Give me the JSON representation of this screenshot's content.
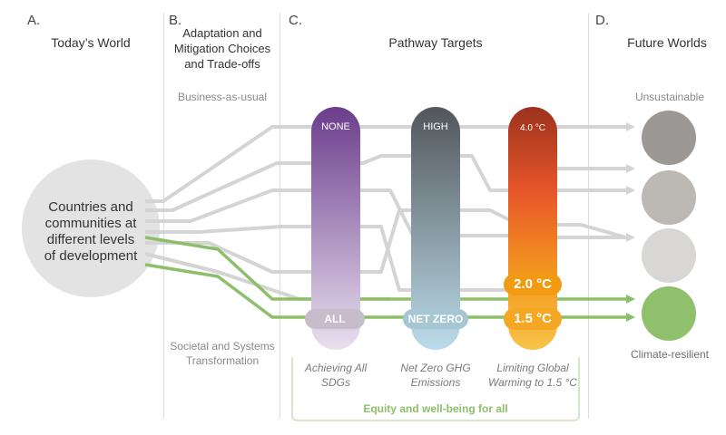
{
  "sections": {
    "a": {
      "letter": "A.",
      "title": "Today’s World"
    },
    "b": {
      "letter": "B.",
      "title": "Adaptation and Mitigation Choices and Trade-offs"
    },
    "c": {
      "letter": "C.",
      "title": "Pathway Targets"
    },
    "d": {
      "letter": "D.",
      "title": "Future Worlds"
    }
  },
  "today": {
    "text": "Countries and communities at different levels of development"
  },
  "choices": {
    "top": "Business-as-usual",
    "bottom": "Societal and Systems Transformation"
  },
  "targets": [
    {
      "top": "NONE",
      "bottom": "ALL",
      "caption": "Achieving All SDGs",
      "colors": [
        "#6b3d8c",
        "#e4d9ec"
      ]
    },
    {
      "top": "HIGH",
      "bottom": "NET ZERO",
      "caption": "Net Zero GHG Emissions",
      "colors": [
        "#555a5e",
        "#b9d9e8"
      ]
    },
    {
      "top": "4.0 °C",
      "middle": "2.0 °C",
      "bottom": "1.5 °C",
      "caption": "Limiting Global Warming to 1.5 °C",
      "colors": [
        "#a8381f",
        "#f5b93b"
      ]
    }
  ],
  "equity": "Equity and well-being for all",
  "future": {
    "top": "Unsustainable",
    "bottom": "Climate-resilient",
    "circle_colors": [
      "#9b9895",
      "#bcb8b4",
      "#d9d7d5",
      "#8fc16d"
    ]
  },
  "colors": {
    "green": "#8dbf6a",
    "grey_path": "#d4d4d4",
    "badge_orange": "#f29b12"
  }
}
